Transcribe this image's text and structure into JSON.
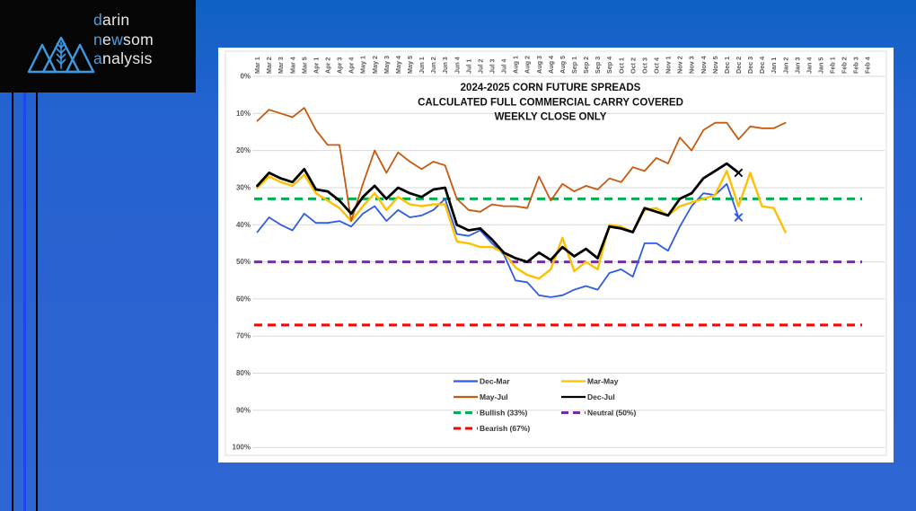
{
  "logo": {
    "lines": [
      [
        {
          "t": "d",
          "hl": true
        },
        {
          "t": "arin",
          "hl": false
        }
      ],
      [
        {
          "t": "n",
          "hl": true
        },
        {
          "t": "e",
          "hl": false
        },
        {
          "t": "w",
          "hl": true
        },
        {
          "t": "som",
          "hl": false
        }
      ],
      [
        {
          "t": "a",
          "hl": true
        },
        {
          "t": "nalysis",
          "hl": false
        }
      ]
    ],
    "highlight_color": "#479fe6",
    "text_color": "#e8e8e8",
    "icon": "wheat-mountains"
  },
  "colors": {
    "background_blue": "#2b63d1",
    "accent_stripe_blue": "#1d46ef",
    "panel_white": "#ffffff",
    "gridline_gray": "#d9d9d9",
    "axis_label_gray": "#595959"
  },
  "chart_data": {
    "type": "line",
    "title_lines": [
      "2024-2025 CORN FUTURE SPREADS",
      "CALCULATED FULL COMMERCIAL CARRY COVERED",
      "WEEKLY CLOSE ONLY"
    ],
    "y_axis": {
      "min": 0,
      "max": 100,
      "step": 10,
      "unit": "%",
      "inverted": true,
      "grid": true
    },
    "legend_position": "bottom-center",
    "categories": [
      "Mar 1",
      "Mar 2",
      "Mar 3",
      "Mar 4",
      "Mar 5",
      "Apr 1",
      "Apr 2",
      "Apr 3",
      "Apr 4",
      "May 1",
      "May 2",
      "May 3",
      "May 4",
      "May 5",
      "Jun 1",
      "Jun 2",
      "Jun 3",
      "Jun 4",
      "Jul 1",
      "Jul 2",
      "Jul 3",
      "Jul 4",
      "Aug 1",
      "Aug 2",
      "Aug 3",
      "Aug 4",
      "Aug 5",
      "Sep 1",
      "Sep 2",
      "Sep 3",
      "Sep 4",
      "Oct 1",
      "Oct 2",
      "Oct 3",
      "Oct 4",
      "Nov 1",
      "Nov 2",
      "Nov 3",
      "Nov 4",
      "Nov 5",
      "Dec 1",
      "Dec 2",
      "Dec 3",
      "Dec 4",
      "Jan 1",
      "Jan 2",
      "Jan 3",
      "Jan 4",
      "Jan 5",
      "Feb 1",
      "Feb 2",
      "Feb 3",
      "Feb 4"
    ],
    "series": [
      {
        "name": "Dec-Mar",
        "color": "#2E5BE8",
        "width": 1.8,
        "end_marker": "x",
        "values": [
          42,
          38,
          40,
          41.5,
          37,
          39.5,
          39.5,
          39,
          40.5,
          37,
          35,
          39,
          36,
          38,
          37.5,
          36,
          33,
          42.5,
          43,
          41.5,
          45,
          48,
          55,
          55.5,
          59,
          59.5,
          59,
          57.5,
          56.5,
          57.5,
          53,
          52,
          54,
          45,
          45,
          47,
          40.5,
          35,
          31.5,
          32,
          29,
          38
        ]
      },
      {
        "name": "Mar-May",
        "color": "#FFC000",
        "width": 2.4,
        "values": [
          30,
          27,
          28.5,
          29.5,
          26.5,
          31.5,
          33.5,
          35.5,
          39,
          35,
          31.5,
          36,
          32.5,
          34.5,
          35,
          34.5,
          34.5,
          44.5,
          45,
          46,
          46,
          47.5,
          51.5,
          53.5,
          54.5,
          52,
          43.5,
          52.5,
          50,
          52,
          40,
          40.5,
          42,
          36,
          35.5,
          37.5,
          35,
          34,
          33,
          32,
          25.5,
          35,
          26,
          35,
          35.5,
          42
        ]
      },
      {
        "name": "May-Jul",
        "color": "#C55A11",
        "width": 1.8,
        "values": [
          12,
          9,
          10,
          11,
          8.5,
          14.5,
          18.5,
          18.5,
          39,
          29,
          20,
          26,
          20.5,
          23,
          25,
          23,
          24,
          33,
          36,
          36.5,
          34.5,
          35,
          35,
          35.5,
          27,
          33.5,
          29,
          31,
          29.5,
          30.5,
          27.5,
          28.5,
          24.5,
          25.5,
          22,
          23.5,
          16.5,
          20,
          14.5,
          12.5,
          12.5,
          17,
          13.5,
          14,
          14,
          12.5
        ]
      },
      {
        "name": "Dec-Jul",
        "color": "#000000",
        "width": 2.8,
        "end_marker": "x",
        "values": [
          29.5,
          26,
          27.5,
          28.5,
          25,
          30.5,
          31,
          33.5,
          37,
          32.5,
          29.5,
          33,
          30,
          31.5,
          32.5,
          30.5,
          30,
          40,
          41.5,
          41,
          44,
          47.5,
          49,
          50,
          47.5,
          49.5,
          46,
          48.5,
          46.5,
          49,
          40.5,
          41,
          42,
          35.5,
          36.5,
          37.5,
          33,
          31.5,
          27.5,
          25.5,
          23.5,
          26
        ]
      }
    ],
    "ref_lines": [
      {
        "label": "Bullish (33%)",
        "value": 33,
        "color": "#00B050"
      },
      {
        "label": "Neutral (50%)",
        "value": 50,
        "color": "#7030A0"
      },
      {
        "label": "Bearish (67%)",
        "value": 67,
        "color": "#FF0000"
      }
    ],
    "legend": [
      {
        "label": "Dec-Mar",
        "color": "#2E5BE8",
        "dash": false
      },
      {
        "label": "Mar-May",
        "color": "#FFC000",
        "dash": false
      },
      {
        "label": "May-Jul",
        "color": "#C55A11",
        "dash": false
      },
      {
        "label": "Dec-Jul",
        "color": "#000000",
        "dash": false
      },
      {
        "label": "Bullish (33%)",
        "color": "#00B050",
        "dash": true
      },
      {
        "label": "Neutral (50%)",
        "color": "#7030A0",
        "dash": true
      },
      {
        "label": "Bearish (67%)",
        "color": "#FF0000",
        "dash": true
      }
    ]
  }
}
